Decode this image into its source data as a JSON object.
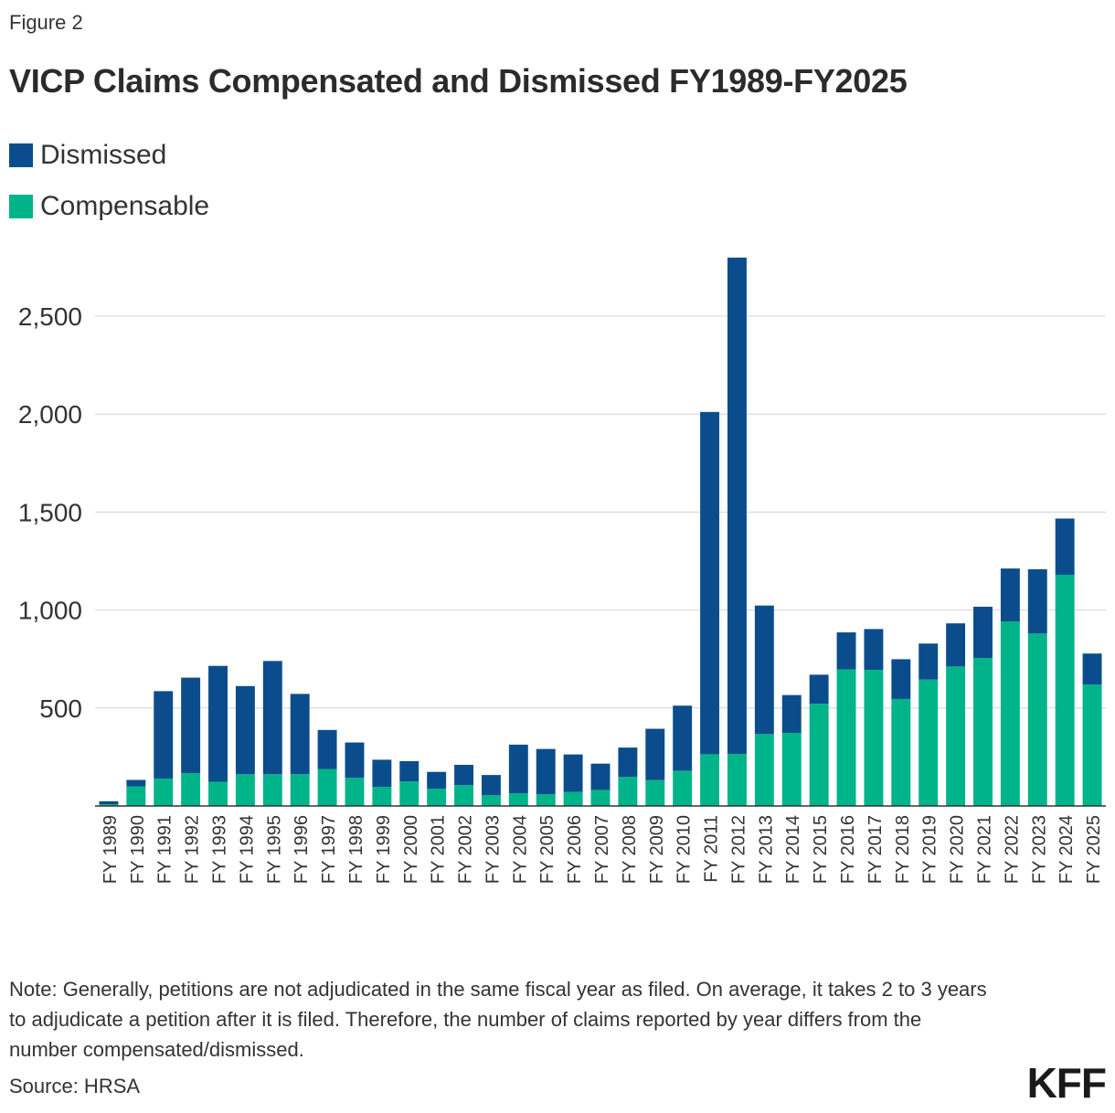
{
  "figure_label": "Figure 2",
  "title": "VICP Claims Compensated and Dismissed FY1989-FY2025",
  "legend": [
    {
      "label": "Dismissed",
      "color": "#0b4d8c"
    },
    {
      "label": "Compensable",
      "color": "#00b48a"
    }
  ],
  "note": "Note: Generally, petitions are not adjudicated in the same fiscal year as filed. On average, it takes 2 to 3 years to adjudicate a petition after it is filed. Therefore, the number of claims reported by year differs from the number compensated/dismissed.",
  "source": "Source: HRSA",
  "logo": "KFF",
  "chart_data": {
    "type": "bar",
    "stacked": true,
    "title": "VICP Claims Compensated and Dismissed FY1989-FY2025",
    "xlabel": "",
    "ylabel": "",
    "ylim": [
      0,
      2800
    ],
    "yticks": [
      500,
      1000,
      1500,
      2000,
      2500
    ],
    "ytick_labels": [
      "500",
      "1,000",
      "1,500",
      "2,000",
      "2,500"
    ],
    "grid": true,
    "legend_position": "top-left",
    "categories": [
      "FY 1989",
      "FY 1990",
      "FY 1991",
      "FY 1992",
      "FY 1993",
      "FY 1994",
      "FY 1995",
      "FY 1996",
      "FY 1997",
      "FY 1998",
      "FY 1999",
      "FY 2000",
      "FY 2001",
      "FY 2002",
      "FY 2003",
      "FY 2004",
      "FY 2005",
      "FY 2006",
      "FY 2007",
      "FY 2008",
      "FY 2009",
      "FY 2010",
      "FY 2011",
      "FY 2012",
      "FY 2013",
      "FY 2014",
      "FY 2015",
      "FY 2016",
      "FY 2017",
      "FY 2018",
      "FY 2019",
      "FY 2020",
      "FY 2021",
      "FY 2022",
      "FY 2023",
      "FY 2024",
      "FY 2025"
    ],
    "series": [
      {
        "name": "Compensable",
        "color": "#00b48a",
        "values": [
          9,
          100,
          140,
          168,
          123,
          162,
          162,
          162,
          189,
          144,
          98,
          125,
          88,
          107,
          55,
          65,
          60,
          72,
          82,
          148,
          132,
          180,
          264,
          265,
          367,
          373,
          522,
          697,
          695,
          546,
          645,
          712,
          755,
          942,
          880,
          1180,
          620
        ]
      },
      {
        "name": "Dismissed",
        "color": "#0b4d8c",
        "values": [
          15,
          33,
          446,
          487,
          592,
          450,
          578,
          410,
          199,
          180,
          138,
          104,
          86,
          103,
          103,
          248,
          231,
          191,
          134,
          150,
          262,
          332,
          1747,
          2534,
          656,
          193,
          148,
          189,
          208,
          203,
          184,
          220,
          262,
          270,
          328,
          287,
          158
        ]
      }
    ]
  }
}
